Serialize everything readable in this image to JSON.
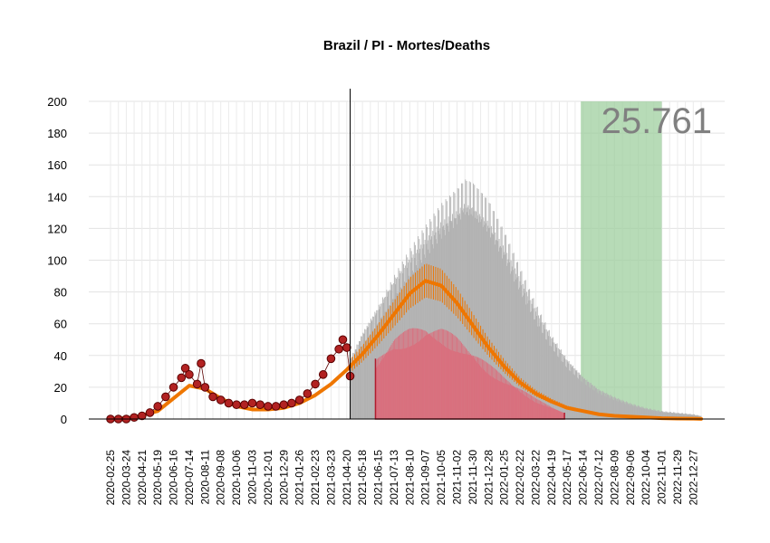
{
  "chart_data": {
    "type": "line",
    "title": "Brazil / PI - Mortes/Deaths",
    "xlabel": "",
    "ylabel": "",
    "ylim": [
      0,
      200
    ],
    "y_ticks": [
      0,
      20,
      40,
      60,
      80,
      100,
      120,
      140,
      160,
      180,
      200
    ],
    "x_range": [
      "2020-02-25",
      "2023-01-10"
    ],
    "x_tick_labels": [
      "2020-02-25",
      "2020-03-24",
      "2020-04-21",
      "2020-05-19",
      "2020-06-16",
      "2020-07-14",
      "2020-08-11",
      "2020-09-08",
      "2020-10-06",
      "2020-11-03",
      "2020-12-01",
      "2020-12-29",
      "2021-01-26",
      "2021-02-23",
      "2021-03-23",
      "2021-04-20",
      "2021-05-18",
      "2021-06-15",
      "2021-07-13",
      "2021-08-10",
      "2021-09-07",
      "2021-10-05",
      "2021-11-02",
      "2021-11-30",
      "2021-12-28",
      "2022-01-25",
      "2022-02-22",
      "2022-03-22",
      "2022-04-19",
      "2022-05-17",
      "2022-06-14",
      "2022-07-12",
      "2022-08-09",
      "2022-09-06",
      "2022-10-04",
      "2022-11-01",
      "2022-11-29",
      "2022-12-27"
    ],
    "vline_date": "2021-04-26",
    "annotation": "25.761",
    "grid": true,
    "colors": {
      "observed_points": "#b22222",
      "observed_edge": "#5a0000",
      "fit_line": "#ee7600",
      "upper_band": "#b3b3b3",
      "lower_band": "#d9707e",
      "lower_band_edge": "#b01c2e",
      "green_region": "#9fcf9f",
      "annotation": "#808080"
    },
    "observed_points": [
      [
        "2020-02-25",
        0
      ],
      [
        "2020-03-10",
        0
      ],
      [
        "2020-03-24",
        0
      ],
      [
        "2020-04-07",
        1
      ],
      [
        "2020-04-21",
        2
      ],
      [
        "2020-05-05",
        4
      ],
      [
        "2020-05-19",
        8
      ],
      [
        "2020-06-02",
        14
      ],
      [
        "2020-06-16",
        20
      ],
      [
        "2020-06-30",
        26
      ],
      [
        "2020-07-07",
        32
      ],
      [
        "2020-07-14",
        28
      ],
      [
        "2020-07-28",
        22
      ],
      [
        "2020-08-04",
        35
      ],
      [
        "2020-08-11",
        20
      ],
      [
        "2020-08-25",
        14
      ],
      [
        "2020-09-08",
        12
      ],
      [
        "2020-09-22",
        10
      ],
      [
        "2020-10-06",
        9
      ],
      [
        "2020-10-20",
        9
      ],
      [
        "2020-11-03",
        10
      ],
      [
        "2020-11-17",
        9
      ],
      [
        "2020-12-01",
        8
      ],
      [
        "2020-12-15",
        8
      ],
      [
        "2020-12-29",
        9
      ],
      [
        "2021-01-12",
        10
      ],
      [
        "2021-01-26",
        12
      ],
      [
        "2021-02-09",
        16
      ],
      [
        "2021-02-23",
        22
      ],
      [
        "2021-03-09",
        28
      ],
      [
        "2021-03-23",
        38
      ],
      [
        "2021-04-06",
        44
      ],
      [
        "2021-04-13",
        50
      ],
      [
        "2021-04-20",
        45
      ],
      [
        "2021-04-26",
        27
      ]
    ],
    "series": [
      {
        "name": "fit",
        "x": [
          "2020-02-25",
          "2020-04-07",
          "2020-05-19",
          "2020-06-16",
          "2020-07-14",
          "2020-08-11",
          "2020-09-08",
          "2020-10-06",
          "2020-11-03",
          "2020-12-01",
          "2020-12-29",
          "2021-01-26",
          "2021-02-23",
          "2021-03-23",
          "2021-04-20",
          "2021-05-18",
          "2021-06-15",
          "2021-07-13",
          "2021-08-10",
          "2021-09-07",
          "2021-10-05",
          "2021-11-02",
          "2021-11-30",
          "2021-12-28",
          "2022-01-25",
          "2022-02-22",
          "2022-03-22",
          "2022-04-19",
          "2022-05-17",
          "2022-06-14",
          "2022-07-12",
          "2022-08-09",
          "2022-09-06",
          "2022-10-04",
          "2022-11-01",
          "2022-11-29",
          "2022-12-27",
          "2023-01-10"
        ],
        "values": [
          0,
          1,
          5,
          13,
          21,
          19,
          13,
          8,
          6,
          6,
          7,
          10,
          15,
          22,
          31,
          41,
          53,
          66,
          79,
          87,
          84,
          73,
          59,
          45,
          33,
          23,
          16,
          11,
          7,
          5,
          3,
          2,
          1.5,
          1,
          0.5,
          0.3,
          0.2,
          0.1
        ]
      },
      {
        "name": "upper",
        "x": [
          "2021-04-26",
          "2021-05-18",
          "2021-06-15",
          "2021-07-13",
          "2021-08-10",
          "2021-09-07",
          "2021-10-05",
          "2021-11-02",
          "2021-11-16",
          "2021-11-30",
          "2021-12-28",
          "2022-01-25",
          "2022-02-22",
          "2022-03-22",
          "2022-04-19",
          "2022-05-17",
          "2022-06-14",
          "2022-07-12",
          "2022-08-09",
          "2022-09-06",
          "2022-10-04",
          "2022-11-01",
          "2022-11-29",
          "2022-12-27",
          "2023-01-10"
        ],
        "values": [
          38,
          55,
          72,
          90,
          106,
          120,
          133,
          142,
          148,
          146,
          135,
          116,
          94,
          72,
          53,
          38,
          27,
          19,
          14,
          10,
          7,
          5,
          4,
          3,
          2
        ]
      },
      {
        "name": "lower",
        "x": [
          "2021-06-10",
          "2021-07-13",
          "2021-08-10",
          "2021-09-07",
          "2021-10-05",
          "2021-11-02",
          "2021-11-30",
          "2021-12-28",
          "2022-01-25",
          "2022-02-22",
          "2022-03-22",
          "2022-04-19",
          "2022-05-12"
        ],
        "values": [
          38,
          52,
          57,
          60,
          58,
          52,
          44,
          35,
          27,
          20,
          13,
          8,
          4
        ]
      }
    ],
    "highlight_region": [
      "2022-06-10",
      "2022-11-01"
    ]
  }
}
